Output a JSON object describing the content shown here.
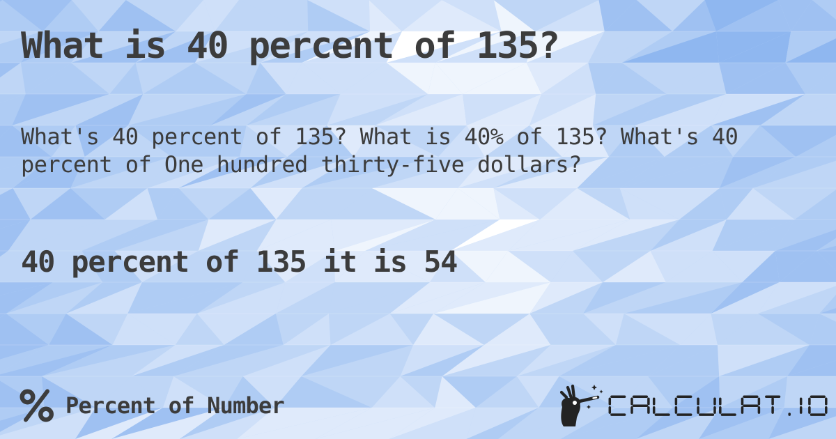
{
  "card": {
    "title": "What is 40 percent of 135?",
    "description": "What's 40 percent of 135? What is 40% of 135? What's 40 percent of One hundred thirty-five dollars?",
    "result": "40 percent of 135 it is 54"
  },
  "footer": {
    "category_icon": "percent-icon",
    "category_label": "Percent of Number",
    "brand_icon": "magic-wand-hand-icon",
    "brand_text": "CALCULAT.IO"
  },
  "colors": {
    "text": "#3c3c3c",
    "logo": "#232323",
    "bg_tile_dark": "#8fb7f0",
    "bg_tile_light": "#ffffff"
  }
}
